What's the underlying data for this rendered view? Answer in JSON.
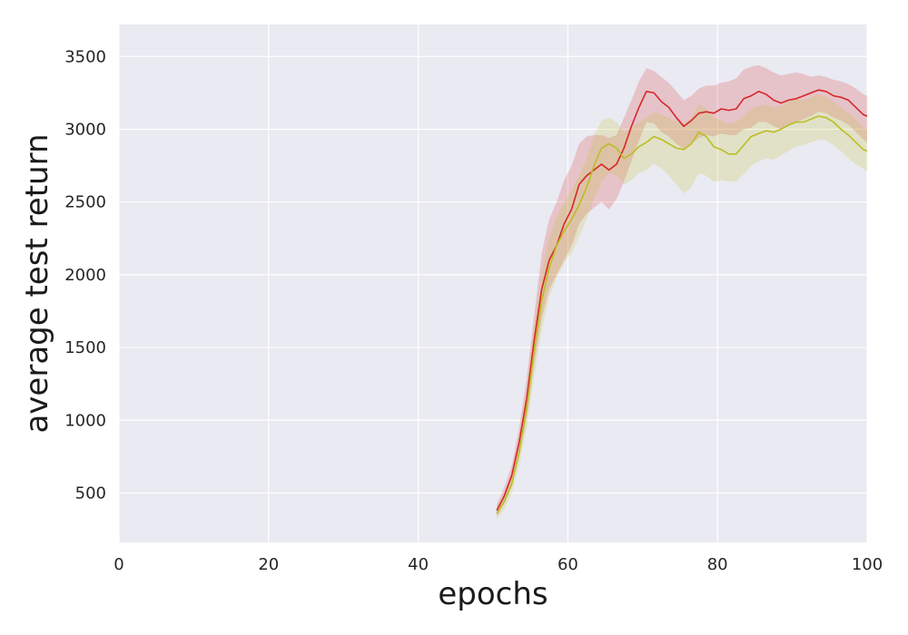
{
  "chart_data": {
    "type": "line",
    "title": "",
    "xlabel": "epochs",
    "ylabel": "average test return",
    "xlim": [
      0,
      100
    ],
    "ylim": [
      160,
      3720
    ],
    "xticks": [
      0,
      20,
      40,
      60,
      80,
      100
    ],
    "yticks": [
      500,
      1000,
      1500,
      2000,
      2500,
      3000,
      3500
    ],
    "grid": true,
    "legend": "none",
    "background": "#eaeaf2",
    "grid_color": "#ffffff",
    "series": [
      {
        "color": "#d62728",
        "band_color": "#d62728",
        "points": [
          [
            50.5,
            380,
            340,
            420
          ],
          [
            51.5,
            480,
            430,
            540
          ],
          [
            52.5,
            620,
            560,
            690
          ],
          [
            53.5,
            850,
            760,
            950
          ],
          [
            54.5,
            1150,
            1020,
            1290
          ],
          [
            55.5,
            1550,
            1380,
            1720
          ],
          [
            56.5,
            1900,
            1700,
            2150
          ],
          [
            57.5,
            2100,
            1900,
            2380
          ],
          [
            58.5,
            2200,
            2000,
            2500
          ],
          [
            59.5,
            2350,
            2100,
            2650
          ],
          [
            60.5,
            2450,
            2200,
            2750
          ],
          [
            61.5,
            2620,
            2350,
            2900
          ],
          [
            62.5,
            2680,
            2420,
            2950
          ],
          [
            63.5,
            2720,
            2460,
            2960
          ],
          [
            64.5,
            2760,
            2500,
            2960
          ],
          [
            65.5,
            2720,
            2450,
            2940
          ],
          [
            66.5,
            2760,
            2520,
            2960
          ],
          [
            67.5,
            2870,
            2640,
            3080
          ],
          [
            68.5,
            3020,
            2780,
            3200
          ],
          [
            69.5,
            3150,
            2920,
            3330
          ],
          [
            70.5,
            3260,
            3050,
            3420
          ],
          [
            71.5,
            3250,
            3040,
            3400
          ],
          [
            72.5,
            3190,
            2980,
            3360
          ],
          [
            73.5,
            3150,
            2950,
            3320
          ],
          [
            74.5,
            3080,
            2900,
            3260
          ],
          [
            75.5,
            3020,
            2860,
            3200
          ],
          [
            76.5,
            3060,
            2900,
            3230
          ],
          [
            77.5,
            3110,
            2940,
            3280
          ],
          [
            78.5,
            3120,
            2960,
            3300
          ],
          [
            79.5,
            3110,
            2950,
            3300
          ],
          [
            80.5,
            3140,
            2970,
            3320
          ],
          [
            81.5,
            3130,
            2960,
            3330
          ],
          [
            82.5,
            3140,
            2960,
            3350
          ],
          [
            83.5,
            3210,
            3000,
            3410
          ],
          [
            84.5,
            3230,
            3010,
            3430
          ],
          [
            85.5,
            3260,
            3050,
            3440
          ],
          [
            86.5,
            3240,
            3050,
            3420
          ],
          [
            87.5,
            3200,
            3020,
            3390
          ],
          [
            88.5,
            3180,
            3000,
            3370
          ],
          [
            89.5,
            3200,
            3030,
            3380
          ],
          [
            90.5,
            3210,
            3050,
            3390
          ],
          [
            91.5,
            3230,
            3070,
            3380
          ],
          [
            92.5,
            3250,
            3090,
            3360
          ],
          [
            93.5,
            3270,
            3120,
            3370
          ],
          [
            94.5,
            3260,
            3110,
            3360
          ],
          [
            95.5,
            3230,
            3080,
            3340
          ],
          [
            96.5,
            3220,
            3060,
            3330
          ],
          [
            97.5,
            3200,
            3030,
            3310
          ],
          [
            98.5,
            3150,
            2980,
            3280
          ],
          [
            99.5,
            3100,
            2930,
            3240
          ],
          [
            100,
            3090,
            2910,
            3230
          ]
        ]
      },
      {
        "color": "#bcbd22",
        "band_color": "#bcbd22",
        "points": [
          [
            50.5,
            360,
            320,
            400
          ],
          [
            51.5,
            440,
            390,
            500
          ],
          [
            52.5,
            560,
            500,
            630
          ],
          [
            53.5,
            780,
            690,
            880
          ],
          [
            54.5,
            1080,
            950,
            1220
          ],
          [
            55.5,
            1480,
            1300,
            1660
          ],
          [
            56.5,
            1820,
            1620,
            2020
          ],
          [
            57.5,
            2050,
            1850,
            2250
          ],
          [
            58.5,
            2200,
            1980,
            2400
          ],
          [
            59.5,
            2300,
            2080,
            2500
          ],
          [
            60.5,
            2380,
            2150,
            2580
          ],
          [
            61.5,
            2480,
            2260,
            2680
          ],
          [
            62.5,
            2600,
            2380,
            2800
          ],
          [
            63.5,
            2750,
            2520,
            2960
          ],
          [
            64.5,
            2870,
            2640,
            3060
          ],
          [
            65.5,
            2900,
            2700,
            3080
          ],
          [
            66.5,
            2870,
            2680,
            3050
          ],
          [
            67.5,
            2800,
            2620,
            2980
          ],
          [
            68.5,
            2830,
            2650,
            3010
          ],
          [
            69.5,
            2880,
            2700,
            3050
          ],
          [
            70.5,
            2910,
            2720,
            3080
          ],
          [
            71.5,
            2950,
            2760,
            3120
          ],
          [
            72.5,
            2930,
            2730,
            3100
          ],
          [
            73.5,
            2900,
            2680,
            3080
          ],
          [
            74.5,
            2870,
            2620,
            3050
          ],
          [
            75.5,
            2860,
            2560,
            3040
          ],
          [
            76.5,
            2900,
            2600,
            3080
          ],
          [
            77.5,
            2980,
            2700,
            3170
          ],
          [
            78.5,
            2950,
            2680,
            3140
          ],
          [
            79.5,
            2880,
            2640,
            3080
          ],
          [
            80.5,
            2860,
            2650,
            3060
          ],
          [
            81.5,
            2830,
            2640,
            3040
          ],
          [
            82.5,
            2830,
            2640,
            3050
          ],
          [
            83.5,
            2890,
            2690,
            3090
          ],
          [
            84.5,
            2950,
            2750,
            3140
          ],
          [
            85.5,
            2970,
            2780,
            3160
          ],
          [
            86.5,
            2990,
            2800,
            3170
          ],
          [
            87.5,
            2980,
            2790,
            3150
          ],
          [
            88.5,
            3000,
            2820,
            3160
          ],
          [
            89.5,
            3030,
            2850,
            3190
          ],
          [
            90.5,
            3050,
            2880,
            3210
          ],
          [
            91.5,
            3050,
            2890,
            3200
          ],
          [
            92.5,
            3070,
            2910,
            3220
          ],
          [
            93.5,
            3090,
            2930,
            3240
          ],
          [
            94.5,
            3080,
            2920,
            3220
          ],
          [
            95.5,
            3050,
            2890,
            3190
          ],
          [
            96.5,
            3000,
            2850,
            3150
          ],
          [
            97.5,
            2960,
            2800,
            3110
          ],
          [
            98.5,
            2910,
            2760,
            3070
          ],
          [
            99.5,
            2860,
            2730,
            3010
          ],
          [
            100,
            2850,
            2710,
            3000
          ]
        ]
      }
    ]
  }
}
